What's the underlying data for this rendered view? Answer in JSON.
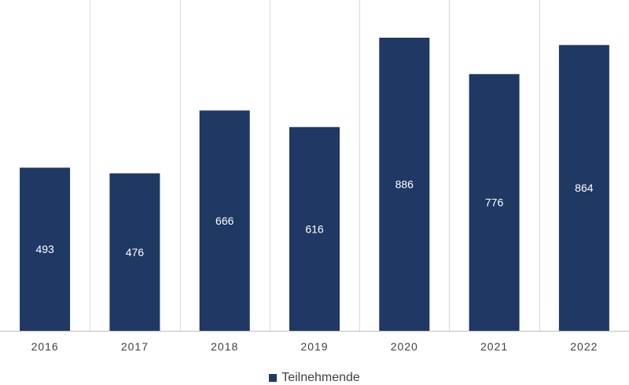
{
  "chart_data": {
    "type": "bar",
    "categories": [
      "2016",
      "2017",
      "2018",
      "2019",
      "2020",
      "2021",
      "2022"
    ],
    "series": [
      {
        "name": "Teilnehmende",
        "values": [
          493,
          476,
          666,
          616,
          886,
          776,
          864
        ],
        "color": "#1f3864"
      }
    ],
    "title": "",
    "xlabel": "",
    "ylabel": "",
    "ylim": [
      0,
      1000
    ],
    "grid": "vertical category separators",
    "data_labels": "centered inside bars",
    "legend": "bottom-center"
  },
  "colors": {
    "bar": "#1f3864",
    "gridline": "#d9d9d9",
    "axis": "#bfbfbf",
    "tick_text": "#404040",
    "data_label_text": "#ffffff"
  },
  "legend": {
    "label": "Teilnehmende"
  }
}
